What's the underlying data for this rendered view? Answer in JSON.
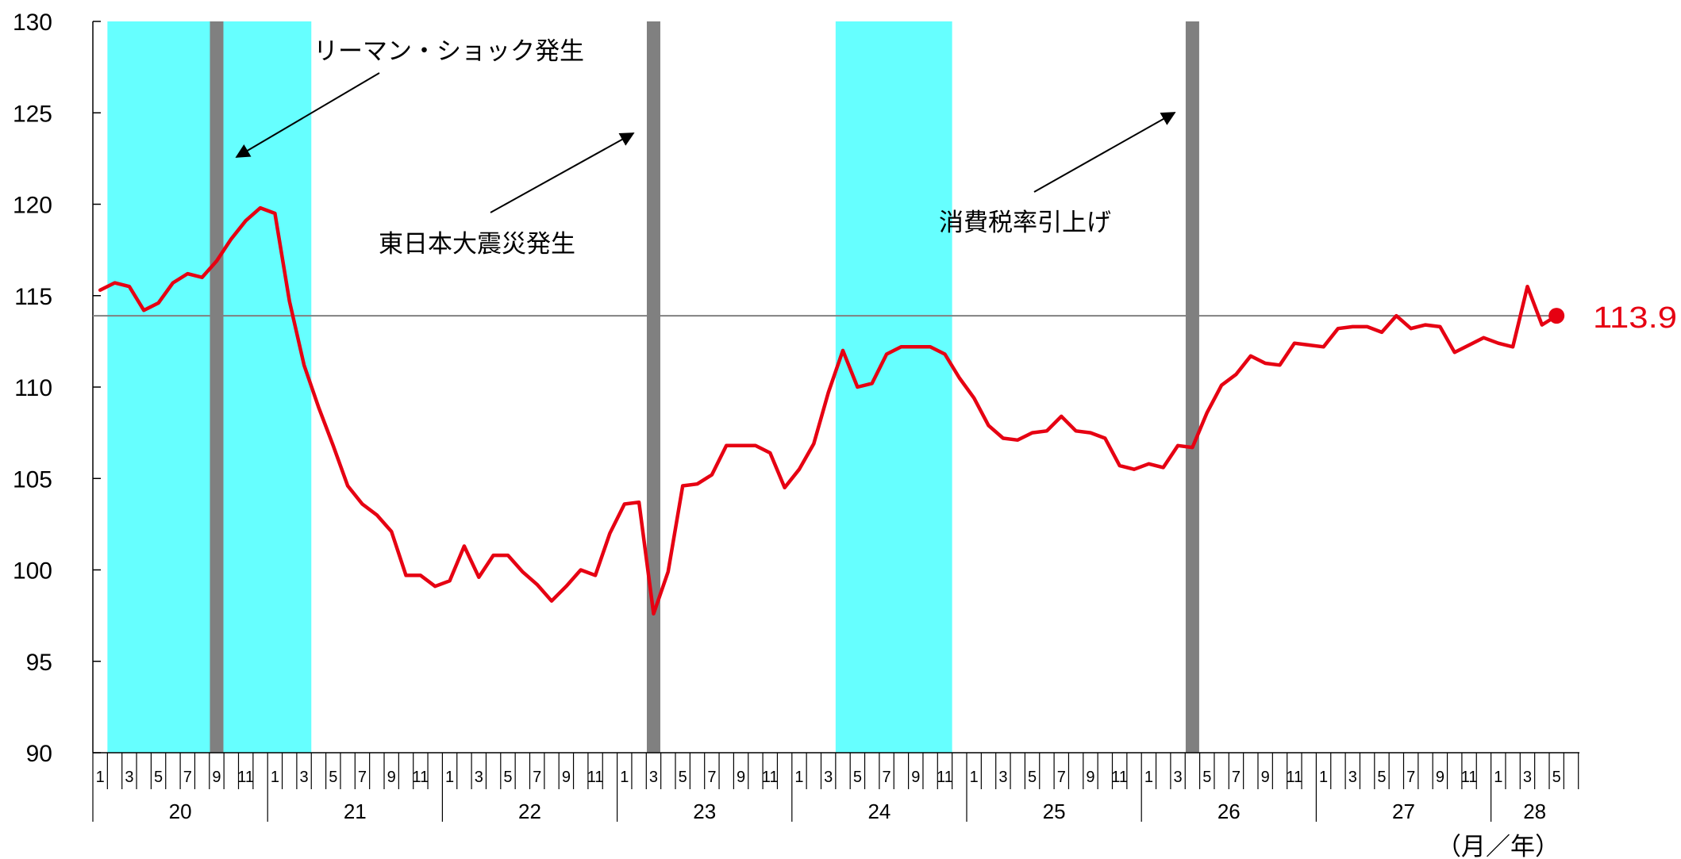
{
  "chart_data": {
    "type": "line",
    "ylim": [
      90,
      130
    ],
    "yticks": [
      "90",
      "95",
      "100",
      "105",
      "110",
      "115",
      "120",
      "125",
      "130"
    ],
    "x_unit_label": "（月／年）",
    "year_labels": [
      "20",
      "21",
      "22",
      "23",
      "24",
      "25",
      "26",
      "27",
      "28"
    ],
    "month_labels": [
      "1",
      "3",
      "5",
      "7",
      "9",
      "11"
    ],
    "reference_line": 113.9,
    "last_value_label": "113.9",
    "colors": {
      "line": "#e60012",
      "shade": "#66ffff",
      "event_bar": "#808080",
      "reference": "#808080"
    },
    "shaded_periods": [
      {
        "start": "2008-02",
        "end": "2009-03"
      },
      {
        "start": "2012-04",
        "end": "2012-11"
      }
    ],
    "event_bars": [
      "2008-09",
      "2011-03",
      "2014-04"
    ],
    "annotations": [
      {
        "text": "リーマン・ショック発生",
        "arrow_to": "2008-09"
      },
      {
        "text": "東日本大震災発生",
        "arrow_to": "2011-03"
      },
      {
        "text": "消費税率引上げ",
        "arrow_to": "2014-04"
      }
    ],
    "x_start": "2008-01",
    "series": [
      {
        "values": [
          115.3,
          115.7,
          115.5,
          114.2,
          114.6,
          115.7,
          116.2,
          116.0,
          116.9,
          118.1,
          119.1,
          119.8,
          119.5,
          114.7,
          111.2,
          108.9,
          106.8,
          104.6,
          103.6,
          103.0,
          102.1,
          99.7,
          99.7,
          99.1,
          99.4,
          101.3,
          99.6,
          100.8,
          100.8,
          99.9,
          99.2,
          98.3,
          99.1,
          100.0,
          99.7,
          102.0,
          103.6,
          103.7,
          97.6,
          99.9,
          104.6,
          104.7,
          105.2,
          106.8,
          106.8,
          106.8,
          106.4,
          104.5,
          105.5,
          106.9,
          109.7,
          112.0,
          110.0,
          110.2,
          111.8,
          112.2,
          112.2,
          112.2,
          111.8,
          110.5,
          109.4,
          107.9,
          107.2,
          107.1,
          107.5,
          107.6,
          108.4,
          107.6,
          107.5,
          107.2,
          105.7,
          105.5,
          105.8,
          105.6,
          106.8,
          106.7,
          108.6,
          110.1,
          110.7,
          111.7,
          111.3,
          111.2,
          112.4,
          112.3,
          112.2,
          113.2,
          113.3,
          113.3,
          113.0,
          113.9,
          113.2,
          113.4,
          113.3,
          111.9,
          112.3,
          112.7,
          112.4,
          112.2,
          115.5,
          113.4,
          113.9
        ]
      }
    ]
  }
}
